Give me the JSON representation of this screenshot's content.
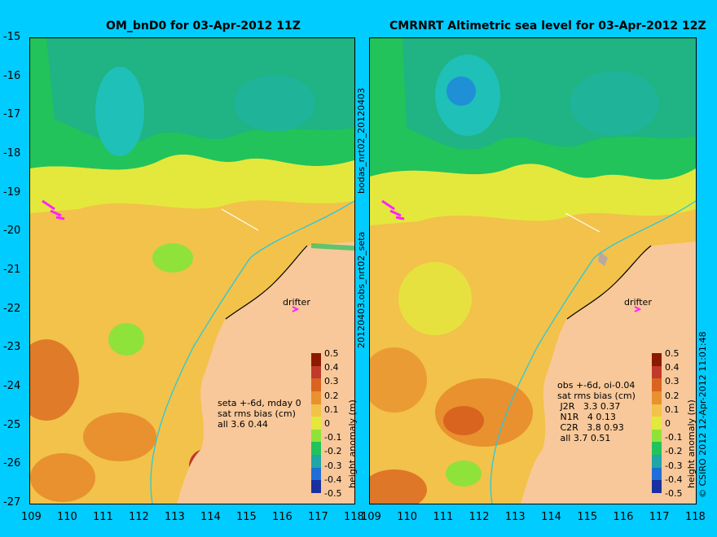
{
  "left_panel": {
    "title": "OM_bnD0 for 03-Apr-2012 11Z",
    "stats": "seta +-6d, mday 0\nsat rms bias (cm)\nall 3.6 0.44",
    "drifter_label": "drifter"
  },
  "right_panel": {
    "title": "CMRNRT Altimetric sea level  for 03-Apr-2012 12Z",
    "stats": "obs +-6d, oi-0.04\nsat rms bias (cm)\n J2R   3.3 0.37\n N1R   4 0.13\n C2R   3.8 0.93\n all 3.7 0.51",
    "drifter_label": "drifter"
  },
  "side_labels": {
    "left_divider_top": "bodas_nrt02_20120403",
    "left_divider_bottom": "20120403.obs_nrt02_seta",
    "right_edge": "© CSIRO 2012  12-Apr-2012 11:01:48"
  },
  "axes": {
    "lat_ticks": [
      "-15",
      "-16",
      "-17",
      "-18",
      "-19",
      "-20",
      "-21",
      "-22",
      "-23",
      "-24",
      "-25",
      "-26",
      "-27"
    ],
    "lon_ticks": [
      "109",
      "110",
      "111",
      "112",
      "113",
      "114",
      "115",
      "116",
      "117",
      "118"
    ],
    "lon_range": [
      109,
      118
    ],
    "lat_range": [
      -27,
      -15
    ]
  },
  "colorbar": {
    "title": "height anomaly (m)",
    "ticks": [
      "0.5",
      "0.4",
      "0.3",
      "0.2",
      "0.1",
      "0",
      "-0.1",
      "-0.2",
      "-0.3",
      "-0.4",
      "-0.5"
    ],
    "colors": [
      "#8b1a00",
      "#c0392b",
      "#d9641f",
      "#e8912e",
      "#f2c24a",
      "#e4e83c",
      "#8fe23a",
      "#22c35a",
      "#1fa6a6",
      "#1f6fd6",
      "#1a2fa0"
    ]
  },
  "colors": {
    "land": "#f8c89a",
    "background": "#00ccff"
  }
}
